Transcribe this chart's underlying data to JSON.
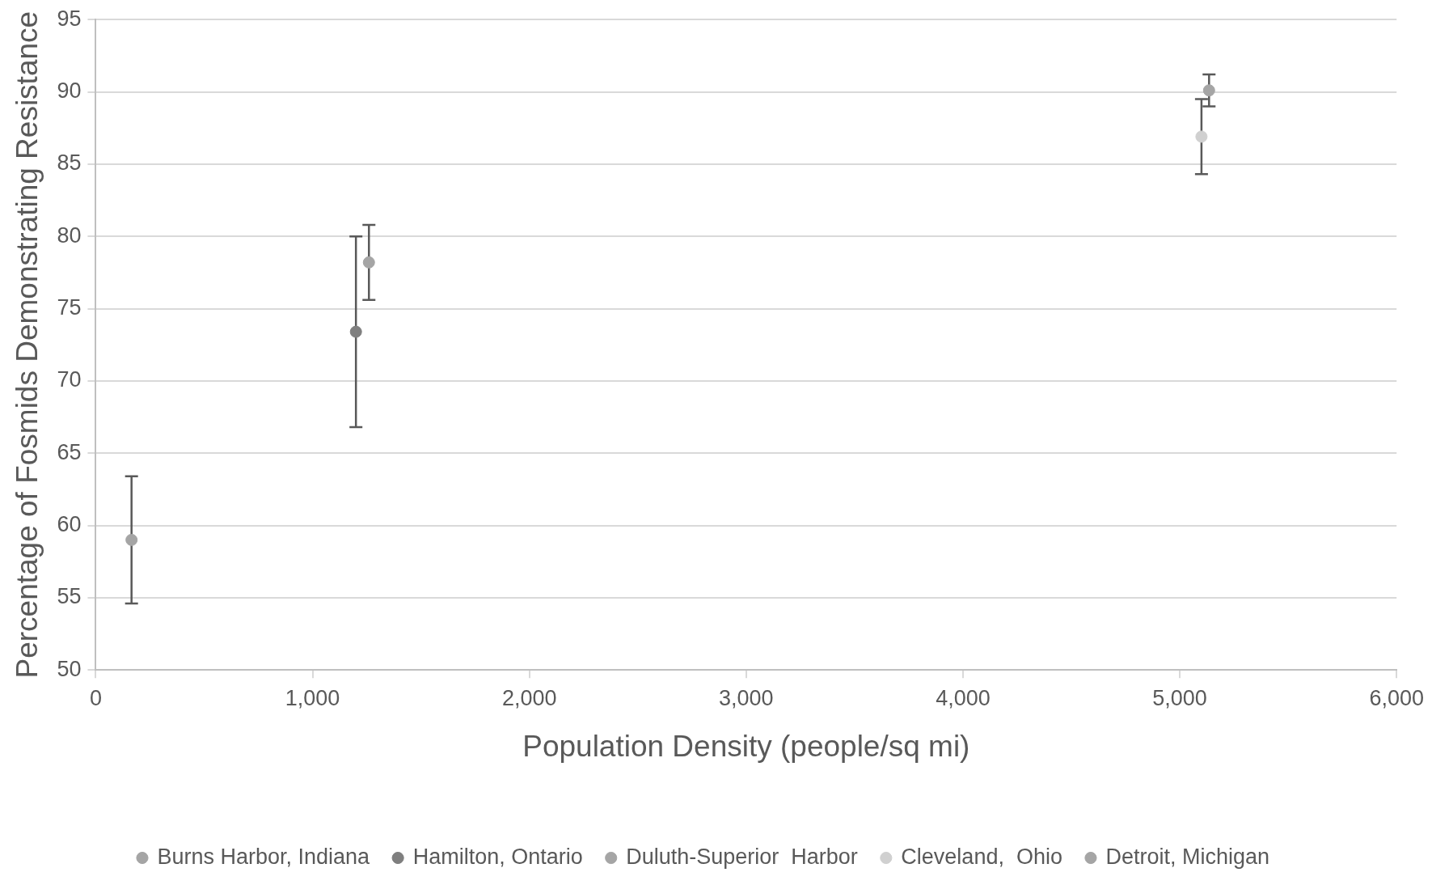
{
  "chart_data": {
    "type": "scatter",
    "xlabel": "Population Density (people/sq mi)",
    "ylabel": "Percentage of Fosmids Demonstrating Resistance",
    "series": [
      {
        "name": "Burns Harbor, Indiana",
        "color": "#a5a5a5",
        "x": [
          165
        ],
        "values": [
          59
        ],
        "errors": [
          4.4
        ]
      },
      {
        "name": "Hamilton, Ontario",
        "color": "#7f7f7f",
        "x": [
          1200
        ],
        "values": [
          73.4
        ],
        "errors": [
          6.6
        ]
      },
      {
        "name": "Duluth-Superior  Harbor",
        "color": "#a5a5a5",
        "x": [
          1260
        ],
        "values": [
          78.2
        ],
        "errors": [
          2.6
        ]
      },
      {
        "name": "Cleveland,  Ohio",
        "color": "#d0d0d0",
        "x": [
          5100
        ],
        "values": [
          86.9
        ],
        "errors": [
          2.6
        ]
      },
      {
        "name": "Detroit, Michigan",
        "color": "#a5a5a5",
        "x": [
          5135
        ],
        "values": [
          90.1
        ],
        "errors": [
          1.1
        ]
      }
    ],
    "xlim": [
      0,
      6000
    ],
    "xticks": [
      0,
      {
        "value": 1000,
        "label": "1,000"
      },
      {
        "value": 2000,
        "label": "2,000"
      },
      {
        "value": 3000,
        "label": "3,000"
      },
      {
        "value": 4000,
        "label": "4,000"
      },
      {
        "value": 5000,
        "label": "5,000"
      },
      {
        "value": 6000,
        "label": "6,000"
      }
    ],
    "ylim": [
      50,
      95
    ],
    "yticks": [
      50,
      55,
      60,
      65,
      70,
      75,
      80,
      85,
      90,
      95
    ],
    "grid": "y",
    "legend": "bottom",
    "marker": "circle"
  }
}
